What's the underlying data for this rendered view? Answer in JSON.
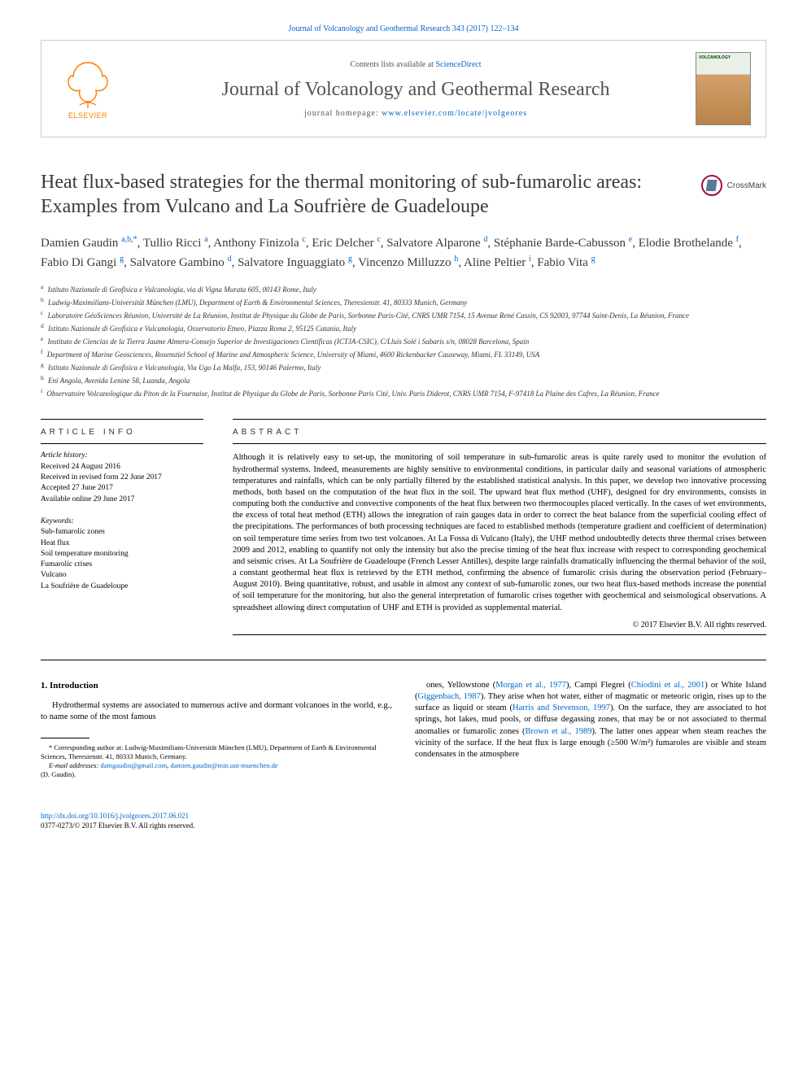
{
  "top": {
    "journal_ref": "Journal of Volcanology and Geothermal Research 343 (2017) 122–134"
  },
  "header": {
    "contents_prefix": "Contents lists available at ",
    "contents_link": "ScienceDirect",
    "journal_name": "Journal of Volcanology and Geothermal Research",
    "homepage_prefix": "journal homepage: ",
    "homepage_link": "www.elsevier.com/locate/jvolgeores",
    "elsevier_label": "ELSEVIER",
    "cover_text": "VOLCANOLOGY"
  },
  "crossmark": {
    "label": "CrossMark"
  },
  "title": "Heat flux-based strategies for the thermal monitoring of sub-fumarolic areas: Examples from Vulcano and La Soufrière de Guadeloupe",
  "authors_html": "Damien Gaudin <sup>a,b,*</sup>, Tullio Ricci <sup>a</sup>, Anthony Finizola <sup>c</sup>, Eric Delcher <sup>c</sup>, Salvatore Alparone <sup>d</sup>, Stéphanie Barde-Cabusson <sup>e</sup>, Elodie Brothelande <sup>f</sup>, Fabio Di Gangi <sup>g</sup>, Salvatore Gambino <sup>d</sup>, Salvatore Inguaggiato <sup>g</sup>, Vincenzo Milluzzo <sup>h</sup>, Aline Peltier <sup>i</sup>, Fabio Vita <sup>g</sup>",
  "affiliations": [
    {
      "sup": "a",
      "text": "Istituto Nazionale di Geofisica e Vulcanologia, via di Vigna Murata 605, 00143 Rome, Italy"
    },
    {
      "sup": "b",
      "text": "Ludwig-Maximilians-Universität München (LMU), Department of Earth & Environmental Sciences, Theresienstr. 41, 80333 Munich, Germany"
    },
    {
      "sup": "c",
      "text": "Laboratoire GéoSciences Réunion, Université de La Réunion, Institut de Physique du Globe de Paris, Sorbonne Paris-Cité, CNRS UMR 7154, 15 Avenue René Cassin, CS 92003, 97744 Saint-Denis, La Réunion, France"
    },
    {
      "sup": "d",
      "text": "Istituto Nazionale di Geofisica e Vulcanologia, Osservatorio Etneo, Piazza Roma 2, 95125 Catania, Italy"
    },
    {
      "sup": "e",
      "text": "Instituto de Ciencias de la Tierra Jaume Almera-Consejo Superior de Investigaciones Científicas (ICTJA-CSIC), C/Lluís Solé i Sabarís s/n, 08028 Barcelona, Spain"
    },
    {
      "sup": "f",
      "text": "Department of Marine Geosciences, Rosenstiel School of Marine and Atmospheric Science, University of Miami, 4600 Rickenbacker Causeway, Miami, FL 33149, USA"
    },
    {
      "sup": "g",
      "text": "Istituto Nazionale di Geofisica e Vulcanologia, Via Ugo La Malfa, 153, 90146 Palermo, Italy"
    },
    {
      "sup": "h",
      "text": "Eni Angola, Avenida Lenine 58, Luanda, Angola"
    },
    {
      "sup": "i",
      "text": "Observatoire Volcanologique du Piton de la Fournaise, Institut de Physique du Globe de Paris, Sorbonne Paris Cité, Univ. Paris Diderot, CNRS UMR 7154, F-97418 La Plaine des Cafres, La Réunion, France"
    }
  ],
  "article_info": {
    "heading": "article info",
    "history_label": "Article history:",
    "history": [
      "Received 24 August 2016",
      "Received in revised form 22 June 2017",
      "Accepted 27 June 2017",
      "Available online 29 June 2017"
    ],
    "keywords_label": "Keywords:",
    "keywords": [
      "Sub-fumarolic zones",
      "Heat flux",
      "Soil temperature monitoring",
      "Fumarolic crises",
      "Vulcano",
      "La Soufrière de Guadeloupe"
    ]
  },
  "abstract": {
    "heading": "abstract",
    "text": "Although it is relatively easy to set-up, the monitoring of soil temperature in sub-fumarolic areas is quite rarely used to monitor the evolution of hydrothermal systems. Indeed, measurements are highly sensitive to environmental conditions, in particular daily and seasonal variations of atmospheric temperatures and rainfalls, which can be only partially filtered by the established statistical analysis. In this paper, we develop two innovative processing methods, both based on the computation of the heat flux in the soil. The upward heat flux method (UHF), designed for dry environments, consists in computing both the conductive and convective components of the heat flux between two thermocouples placed vertically. In the cases of wet environments, the excess of total heat method (ETH) allows the integration of rain gauges data in order to correct the heat balance from the superficial cooling effect of the precipitations. The performances of both processing techniques are faced to established methods (temperature gradient and coefficient of determination) on soil temperature time series from two test volcanoes. At La Fossa di Vulcano (Italy), the UHF method undoubtedly detects three thermal crises between 2009 and 2012, enabling to quantify not only the intensity but also the precise timing of the heat flux increase with respect to corresponding geochemical and seismic crises. At La Soufrière de Guadeloupe (French Lesser Antilles), despite large rainfalls dramatically influencing the thermal behavior of the soil, a constant geothermal heat flux is retrieved by the ETH method, confirming the absence of fumarolic crisis during the observation period (February–August 2010). Being quantitative, robust, and usable in almost any context of sub-fumarolic zones, our two heat flux-based methods increase the potential of soil temperature for the monitoring, but also the general interpretation of fumarolic crises together with geochemical and seismological observations. A spreadsheet allowing direct computation of UHF and ETH is provided as supplemental material.",
    "copyright": "© 2017 Elsevier B.V. All rights reserved."
  },
  "body": {
    "section_heading": "1. Introduction",
    "left_para": "Hydrothermal systems are associated to numerous active and dormant volcanoes in the world, e.g., to name some of the most famous",
    "right_para_parts": [
      "ones, Yellowstone (",
      "Morgan et al., 1977",
      "), Campi Flegrei (",
      "Chiodini et al., 2001",
      ") or White Island (",
      "Giggenbach, 1987",
      "). They arise when hot water, either of magmatic or meteoric origin, rises up to the surface as liquid or steam (",
      "Harris and Stevenson, 1997",
      "). On the surface, they are associated to hot springs, hot lakes, mud pools, or diffuse degassing zones, that may be or not associated to thermal anomalies or fumarolic zones (",
      "Brown et al., 1989",
      "). The latter ones appear when steam reaches the vicinity of the surface. If the heat flux is large enough (≥500 W/m²) fumaroles are visible and steam condensates in the atmosphere"
    ]
  },
  "footnotes": {
    "corr_label": "* Corresponding author at: Ludwig-Maximilians-Universität München (LMU), Department of Earth & Environmental Sciences, Theresienstr. 41, 80333 Munich, Germany.",
    "email_label": "E-mail addresses: ",
    "email1": "damgaudin@gmail.com",
    "email_sep": ", ",
    "email2": "damien.gaudin@min.uni-muenchen.de",
    "email_name": "(D. Gaudin)."
  },
  "footer": {
    "doi": "http://dx.doi.org/10.1016/j.jvolgeores.2017.06.021",
    "issn_line": "0377-0273/© 2017 Elsevier B.V. All rights reserved."
  },
  "colors": {
    "link": "#0066cc",
    "elsevier_orange": "#ff7a00",
    "text": "#000000",
    "muted": "#555555"
  }
}
